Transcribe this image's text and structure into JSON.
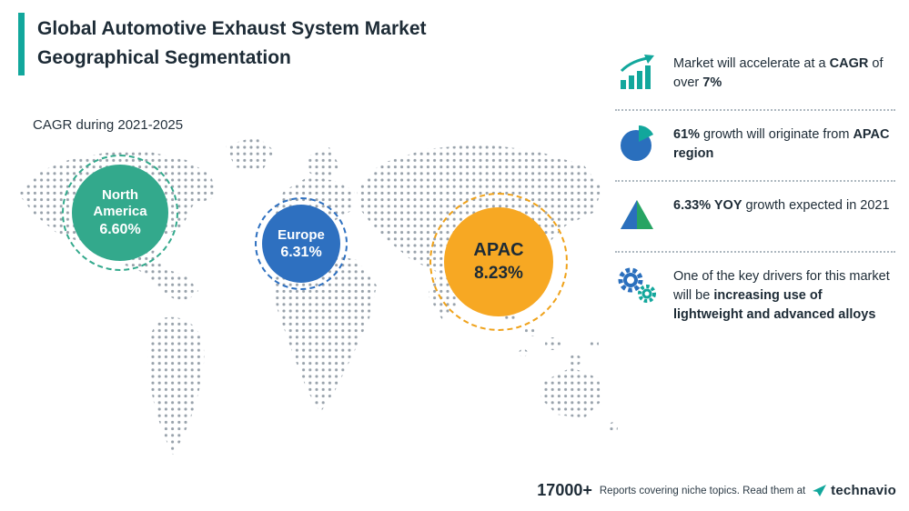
{
  "colors": {
    "accent_teal": "#12a79c",
    "north_america_bubble": "#33a98c",
    "europe_bubble": "#2e70c0",
    "apac_bubble": "#f7a823",
    "blue": "#2a6fbd",
    "green": "#27a463",
    "map_dots": "#98a2ab",
    "text_dark": "#1d2b36"
  },
  "header": {
    "title_line1": "Global Automotive Exhaust System Market",
    "title_line2": "Geographical Segmentation"
  },
  "subtitle": "CAGR during 2021-2025",
  "map": {
    "bubbles": [
      {
        "id": "north-america",
        "label": "North America",
        "value": "6.60%",
        "color": "#33a98c"
      },
      {
        "id": "europe",
        "label": "Europe",
        "value": "6.31%",
        "color": "#2e70c0"
      },
      {
        "id": "apac",
        "label": "APAC",
        "value": "8.23%",
        "color": "#f7a823"
      }
    ]
  },
  "facts": [
    {
      "icon": "growth-arrow-chart-icon",
      "segments": [
        {
          "text": "Market will accelerate at a ",
          "bold": false
        },
        {
          "text": "CAGR",
          "bold": true
        },
        {
          "text": " of over ",
          "bold": false
        },
        {
          "text": "7%",
          "bold": true
        }
      ]
    },
    {
      "icon": "pie-chart-icon",
      "segments": [
        {
          "text": "61%",
          "bold": true
        },
        {
          "text": " growth will originate from ",
          "bold": false
        },
        {
          "text": "APAC region",
          "bold": true
        }
      ]
    },
    {
      "icon": "growth-triangle-icon",
      "segments": [
        {
          "text": "6.33% YOY",
          "bold": true
        },
        {
          "text": " growth expected in 2021",
          "bold": false
        }
      ]
    },
    {
      "icon": "gears-icon",
      "segments": [
        {
          "text": "One of the key drivers for this market will be ",
          "bold": false
        },
        {
          "text": "increasing use of lightweight and advanced alloys",
          "bold": true
        }
      ]
    }
  ],
  "footer": {
    "count": "17000+",
    "tagline": "Reports covering niche topics. Read them at",
    "brand": "technavio"
  },
  "chart_data": {
    "type": "bar",
    "title": "Global Automotive Exhaust System Market — Geographical Segmentation",
    "subtitle": "CAGR during 2021-2025",
    "categories": [
      "North America",
      "Europe",
      "APAC"
    ],
    "values": [
      6.6,
      6.31,
      8.23
    ],
    "unit": "% CAGR",
    "legend_position": "on-map-bubbles",
    "annotations": [
      "Market will accelerate at a CAGR of over 7%",
      "61% growth will originate from APAC region",
      "6.33% YOY growth expected in 2021",
      "One of the key drivers for this market will be increasing use of lightweight and advanced alloys",
      "17000+ Reports covering niche topics. Read them at technavio"
    ]
  }
}
